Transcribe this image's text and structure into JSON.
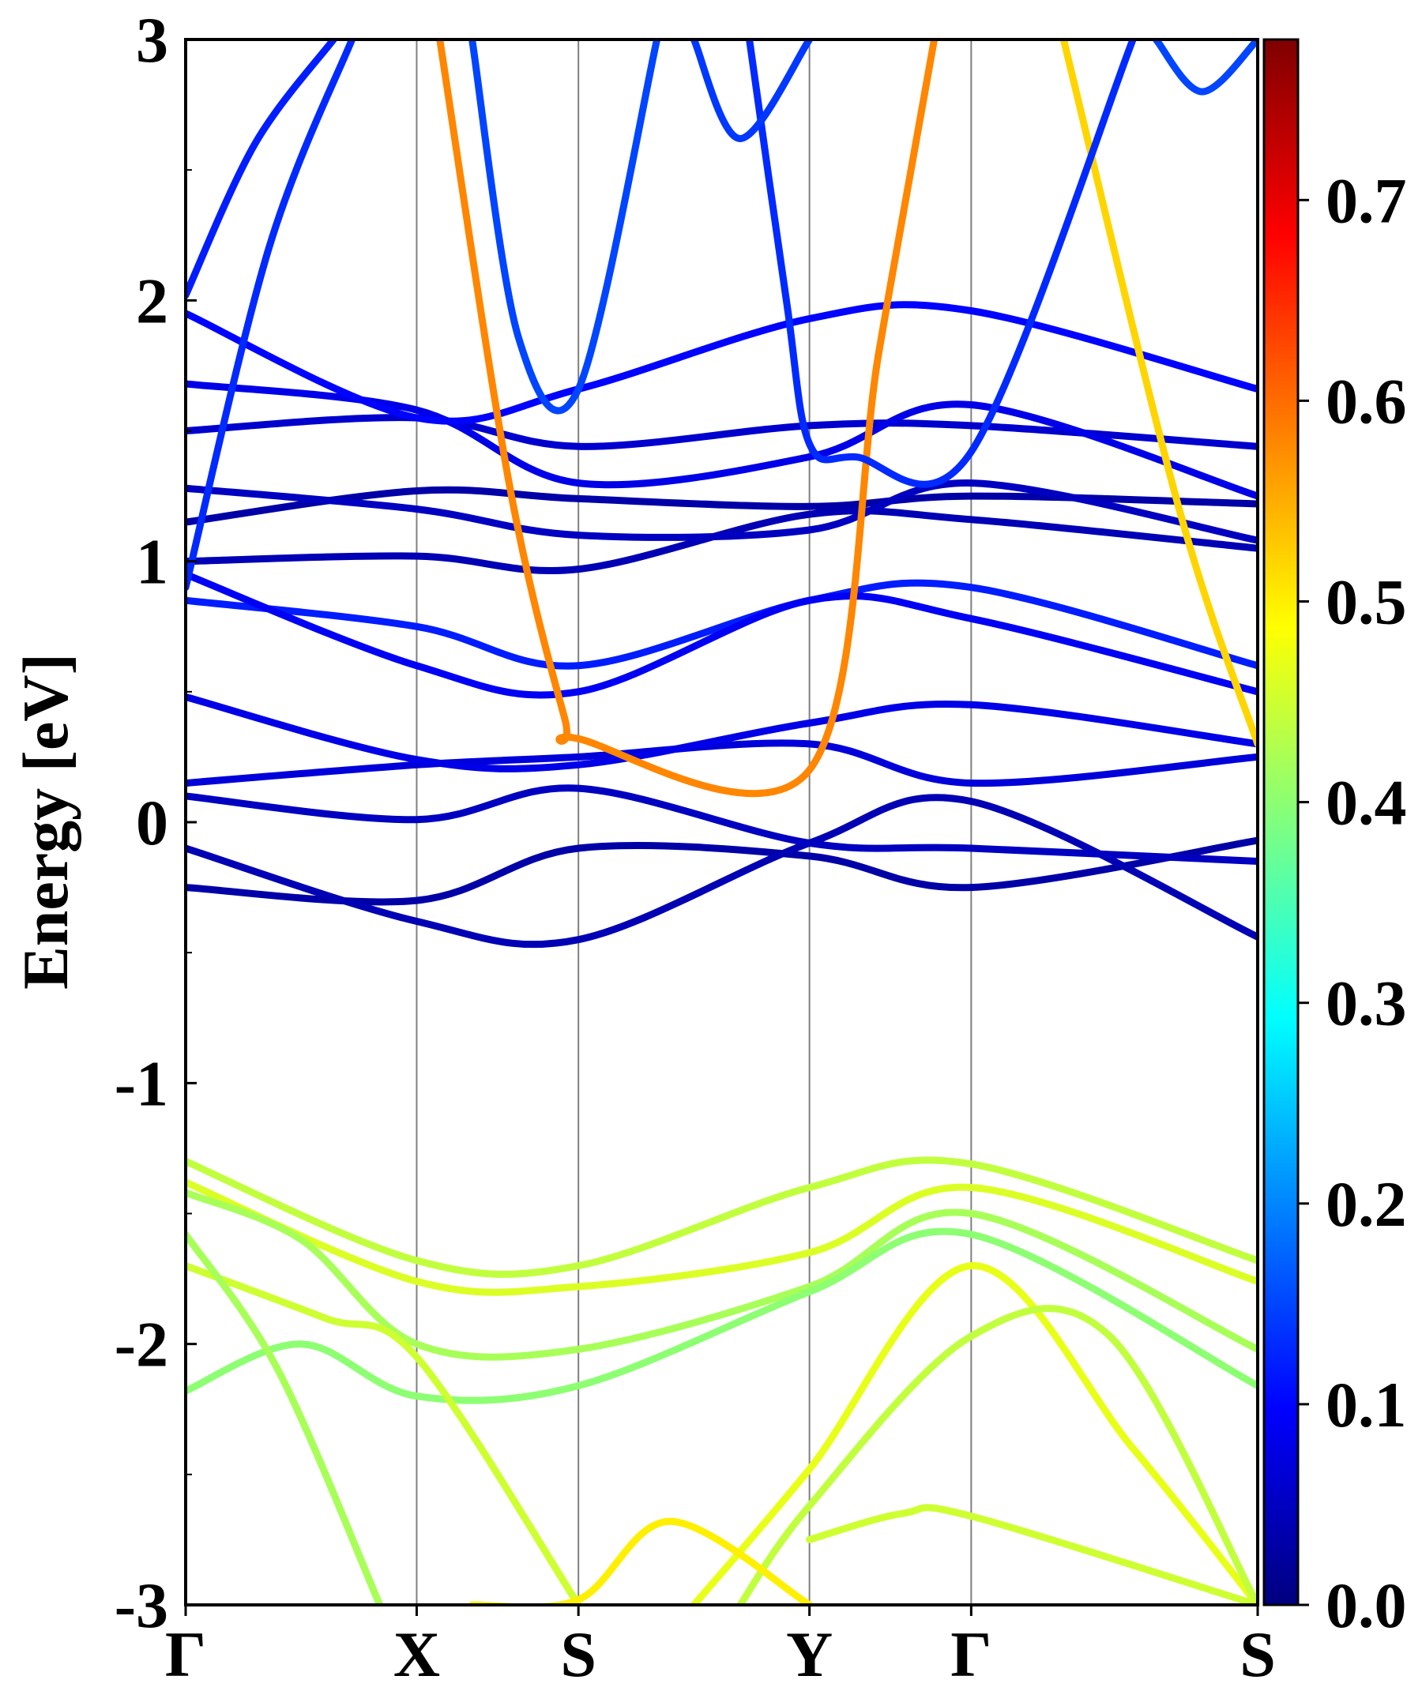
{
  "chart_data": {
    "type": "line",
    "title": "",
    "xlabel": "",
    "ylabel": "Energy [eV]",
    "ylim": [
      -3,
      3
    ],
    "yticks": [
      "-3",
      "-2",
      "-1",
      "0",
      "1",
      "2",
      "3"
    ],
    "kpath": [
      "Γ",
      "X",
      "S",
      "Y",
      "Γ",
      "S"
    ],
    "kpath_positions": [
      0,
      0.5,
      0.85,
      1.35,
      1.7,
      2.32
    ],
    "grid": false,
    "colormap": "jet",
    "colorbar": {
      "range": [
        0.0,
        0.78
      ],
      "ticks": [
        "0.0",
        "0.1",
        "0.2",
        "0.3",
        "0.4",
        "0.5",
        "0.6",
        "0.7"
      ]
    },
    "series": [
      {
        "weight": 0.44,
        "x": [
          0,
          0.5,
          0.85,
          1.35,
          1.7,
          2.32
        ],
        "y": [
          -1.3,
          -1.68,
          -1.7,
          -1.4,
          -1.31,
          -1.68
        ]
      },
      {
        "weight": 0.46,
        "x": [
          0,
          0.5,
          0.85,
          1.35,
          1.7,
          2.32
        ],
        "y": [
          -1.38,
          -1.76,
          -1.78,
          -1.65,
          -1.4,
          -1.76
        ]
      },
      {
        "weight": 0.42,
        "x": [
          0,
          0.25,
          0.5,
          0.85,
          1.35,
          1.7,
          2.32
        ],
        "y": [
          -1.42,
          -1.6,
          -2.0,
          -2.02,
          -1.78,
          -1.5,
          -2.02
        ]
      },
      {
        "weight": 0.4,
        "x": [
          0,
          0.25,
          0.5,
          0.85,
          1.35,
          1.7,
          2.32
        ],
        "y": [
          -2.18,
          -2.0,
          -2.2,
          -2.16,
          -1.8,
          -1.58,
          -2.16
        ]
      },
      {
        "weight": 0.45,
        "x": [
          0,
          0.3,
          0.5,
          0.85
        ],
        "y": [
          -1.7,
          -1.9,
          -2.05,
          -3.0
        ]
      },
      {
        "weight": 0.42,
        "x": [
          0,
          0.2,
          0.42
        ],
        "y": [
          -1.58,
          -2.1,
          -3.0
        ]
      },
      {
        "weight": 0.47,
        "x": [
          1.1,
          1.35,
          1.7,
          2.05,
          2.32
        ],
        "y": [
          -3.0,
          -2.48,
          -1.7,
          -2.4,
          -3.0
        ]
      },
      {
        "weight": 0.44,
        "x": [
          1.2,
          1.35,
          1.7,
          2.0,
          2.32
        ],
        "y": [
          -3.0,
          -2.62,
          -1.97,
          -1.97,
          -3.0
        ]
      },
      {
        "weight": 0.45,
        "x": [
          1.35,
          1.55,
          1.7,
          2.32
        ],
        "y": [
          -2.75,
          -2.65,
          -2.66,
          -3.0
        ]
      },
      {
        "weight": 0.5,
        "x": [
          0.62,
          0.85,
          1.05,
          1.35
        ],
        "y": [
          -3.0,
          -2.98,
          -2.68,
          -3.0
        ]
      },
      {
        "weight": 0.03,
        "x": [
          0,
          0.5,
          0.85,
          1.35,
          1.7,
          2.32
        ],
        "y": [
          -0.25,
          -0.3,
          -0.1,
          -0.13,
          -0.25,
          -0.07
        ]
      },
      {
        "weight": 0.04,
        "x": [
          0,
          0.5,
          0.85,
          1.35,
          1.7,
          2.32
        ],
        "y": [
          -0.1,
          -0.38,
          -0.45,
          -0.08,
          0.08,
          -0.44
        ]
      },
      {
        "weight": 0.05,
        "x": [
          0,
          0.5,
          0.85,
          1.35,
          1.7,
          2.32
        ],
        "y": [
          0.1,
          0.01,
          0.13,
          -0.08,
          -0.1,
          -0.15
        ]
      },
      {
        "weight": 0.07,
        "x": [
          0,
          0.5,
          0.85,
          1.35,
          1.7,
          2.32
        ],
        "y": [
          0.15,
          0.22,
          0.25,
          0.3,
          0.15,
          0.25
        ]
      },
      {
        "weight": 0.08,
        "x": [
          0,
          0.5,
          0.85,
          1.35,
          1.7,
          2.32
        ],
        "y": [
          0.48,
          0.24,
          0.22,
          0.38,
          0.45,
          0.3
        ]
      },
      {
        "weight": 0.12,
        "x": [
          0,
          0.5,
          0.85,
          1.35,
          1.7,
          2.32
        ],
        "y": [
          0.85,
          0.75,
          0.6,
          0.85,
          0.9,
          0.6
        ]
      },
      {
        "weight": 0.09,
        "x": [
          0,
          0.5,
          0.85,
          1.35,
          1.7,
          2.32
        ],
        "y": [
          0.95,
          0.6,
          0.5,
          0.85,
          0.78,
          0.5
        ]
      },
      {
        "weight": 0.04,
        "x": [
          0,
          0.5,
          0.85,
          1.35,
          1.7,
          2.32
        ],
        "y": [
          1.0,
          1.02,
          0.97,
          1.18,
          1.16,
          1.05
        ]
      },
      {
        "weight": 0.03,
        "x": [
          0,
          0.5,
          0.85,
          1.35,
          1.7,
          2.32
        ],
        "y": [
          1.15,
          1.27,
          1.24,
          1.21,
          1.25,
          1.22
        ]
      },
      {
        "weight": 0.05,
        "x": [
          0,
          0.5,
          0.85,
          1.35,
          1.7,
          2.32
        ],
        "y": [
          1.28,
          1.2,
          1.1,
          1.12,
          1.3,
          1.08
        ]
      },
      {
        "weight": 0.06,
        "x": [
          0,
          0.5,
          0.85,
          1.35,
          1.7,
          2.32
        ],
        "y": [
          1.5,
          1.55,
          1.44,
          1.52,
          1.52,
          1.44
        ]
      },
      {
        "weight": 0.08,
        "x": [
          0,
          0.5,
          0.85,
          1.35,
          1.7,
          2.32
        ],
        "y": [
          1.68,
          1.58,
          1.3,
          1.4,
          1.6,
          1.25
        ]
      },
      {
        "weight": 0.1,
        "x": [
          0,
          0.5,
          0.85,
          1.35,
          1.7,
          2.32
        ],
        "y": [
          1.95,
          1.55,
          1.66,
          1.93,
          1.96,
          1.66
        ]
      },
      {
        "weight": 0.12,
        "x": [
          0,
          0.15,
          0.32
        ],
        "y": [
          2.02,
          2.6,
          3.0
        ]
      },
      {
        "weight": 0.13,
        "x": [
          0,
          0.18,
          0.36
        ],
        "y": [
          0.9,
          2.2,
          3.0
        ]
      },
      {
        "weight": 0.58,
        "x": [
          0.55,
          0.7,
          0.82,
          0.85,
          1.35,
          1.5,
          1.62
        ],
        "y": [
          3.0,
          1.3,
          0.4,
          0.32,
          0.2,
          1.8,
          3.0
        ]
      },
      {
        "weight": 0.52,
        "x": [
          1.9,
          2.15,
          2.32
        ],
        "y": [
          3.0,
          1.2,
          0.3
        ]
      },
      {
        "weight": 0.15,
        "x": [
          0.62,
          0.72,
          0.85,
          1.02
        ],
        "y": [
          3.0,
          1.86,
          1.66,
          3.0
        ]
      },
      {
        "weight": 0.13,
        "x": [
          1.22,
          1.3,
          1.35,
          1.45,
          1.7,
          2.05
        ],
        "y": [
          3.0,
          2.0,
          1.45,
          1.4,
          1.42,
          3.0
        ]
      },
      {
        "weight": 0.14,
        "x": [
          1.1,
          1.2,
          1.35
        ],
        "y": [
          3.0,
          2.62,
          3.0
        ]
      },
      {
        "weight": 0.15,
        "x": [
          2.1,
          2.2,
          2.32
        ],
        "y": [
          3.0,
          2.8,
          3.0
        ]
      }
    ]
  }
}
